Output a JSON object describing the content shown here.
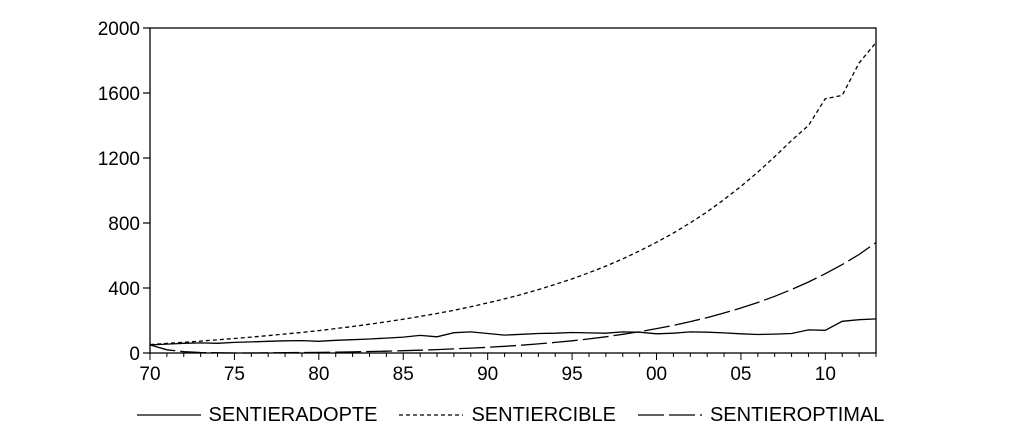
{
  "chart_data": {
    "type": "line",
    "x_tick_labels": [
      "70",
      "75",
      "80",
      "85",
      "90",
      "95",
      "00",
      "05",
      "10"
    ],
    "y_ticks": [
      0,
      400,
      800,
      1200,
      1600,
      2000
    ],
    "y_tick_labels": [
      "0",
      "400",
      "800",
      "1200",
      "1600",
      "2000"
    ],
    "xlim": [
      1970,
      2013
    ],
    "ylim": [
      0,
      2000
    ],
    "legend_position": "bottom",
    "x": [
      1970,
      1971,
      1972,
      1973,
      1974,
      1975,
      1976,
      1977,
      1978,
      1979,
      1980,
      1981,
      1982,
      1983,
      1984,
      1985,
      1986,
      1987,
      1988,
      1989,
      1990,
      1991,
      1992,
      1993,
      1994,
      1995,
      1996,
      1997,
      1998,
      1999,
      2000,
      2001,
      2002,
      2003,
      2004,
      2005,
      2006,
      2007,
      2008,
      2009,
      2010,
      2011,
      2012,
      2013
    ],
    "series": [
      {
        "name": "SENTIERADOPTE",
        "style": "solid",
        "values": [
          50,
          55,
          60,
          62,
          60,
          65,
          68,
          72,
          75,
          76,
          72,
          78,
          82,
          86,
          92,
          98,
          108,
          100,
          125,
          130,
          120,
          110,
          115,
          120,
          122,
          126,
          124,
          122,
          130,
          128,
          118,
          122,
          130,
          128,
          124,
          118,
          114,
          116,
          120,
          142,
          140,
          195,
          205,
          210
        ]
      },
      {
        "name": "SENTIERCIBLE",
        "style": "dashed",
        "values": [
          52,
          59,
          66,
          73,
          81,
          89,
          98,
          107,
          117,
          127,
          138,
          150,
          163,
          177,
          192,
          208,
          225,
          243,
          263,
          285,
          308,
          333,
          360,
          390,
          422,
          456,
          494,
          535,
          579,
          628,
          681,
          738,
          801,
          869,
          944,
          1025,
          1113,
          1208,
          1308,
          1400,
          1565,
          1585,
          1785,
          1910
        ]
      },
      {
        "name": "SENTIEROPTIMAL",
        "style": "longdash",
        "values": [
          50,
          20,
          8,
          3,
          1,
          0,
          0,
          1,
          2,
          3,
          4,
          5,
          7,
          9,
          11,
          14,
          17,
          21,
          25,
          30,
          35,
          41,
          48,
          56,
          65,
          75,
          87,
          100,
          115,
          131,
          150,
          170,
          193,
          218,
          246,
          277,
          311,
          349,
          391,
          437,
          488,
          544,
          606,
          680
        ]
      }
    ]
  }
}
